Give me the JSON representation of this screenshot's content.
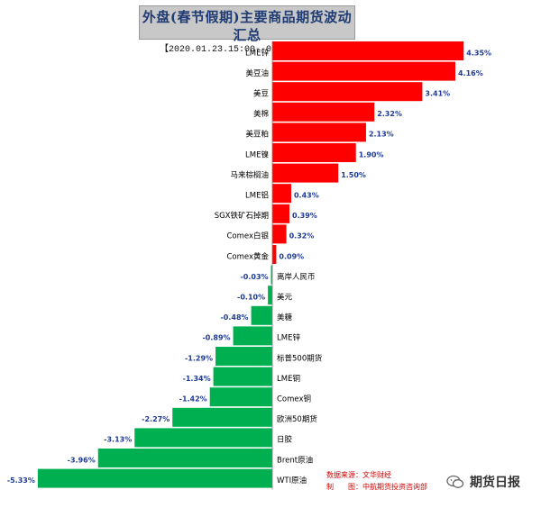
{
  "header": {
    "title": "外盘(春节假期)主要商品期货波动汇总",
    "subtitle": "【2020.01.23.15:00--02.01.06:00】"
  },
  "colors": {
    "positive": "#ff0000",
    "negative": "#00b050",
    "value_label": "#1f3b99"
  },
  "source": {
    "line1": "数据来源：文华财经",
    "line2": "制　　图：中航期货投资咨询部"
  },
  "watermark": {
    "text": "期货日报",
    "icon": "wechat-icon"
  },
  "chart_data": {
    "type": "bar",
    "orientation": "horizontal",
    "title": "外盘(春节假期)主要商品期货波动汇总",
    "categories": [
      "LME锌",
      "美豆油",
      "美豆",
      "美棉",
      "美豆粕",
      "LME镍",
      "马来棕榈油",
      "LME铝",
      "SGX铁矿石掉期",
      "Comex白银",
      "Comex黄金",
      "离岸人民币",
      "美元",
      "美糖",
      "LME锌",
      "标普500期货",
      "LME铜",
      "Comex铜",
      "欧洲50期货",
      "日胶",
      "Brent原油",
      "WTI原油"
    ],
    "values": [
      4.35,
      4.16,
      3.41,
      2.32,
      2.13,
      1.9,
      1.5,
      0.43,
      0.39,
      0.32,
      0.09,
      -0.03,
      -0.1,
      -0.48,
      -0.89,
      -1.29,
      -1.34,
      -1.42,
      -2.27,
      -3.13,
      -3.96,
      -5.33
    ],
    "value_labels": [
      "4.35%",
      "4.16%",
      "3.41%",
      "2.32%",
      "2.13%",
      "1.90%",
      "1.50%",
      "0.43%",
      "0.39%",
      "0.32%",
      "0.09%",
      "-0.03%",
      "-0.10%",
      "-0.48%",
      "-0.89%",
      "-1.29%",
      "-1.34%",
      "-1.42%",
      "-2.27%",
      "-3.13%",
      "-3.96%",
      "-5.33%"
    ],
    "unit": "%",
    "grid": false,
    "legend": "none"
  }
}
